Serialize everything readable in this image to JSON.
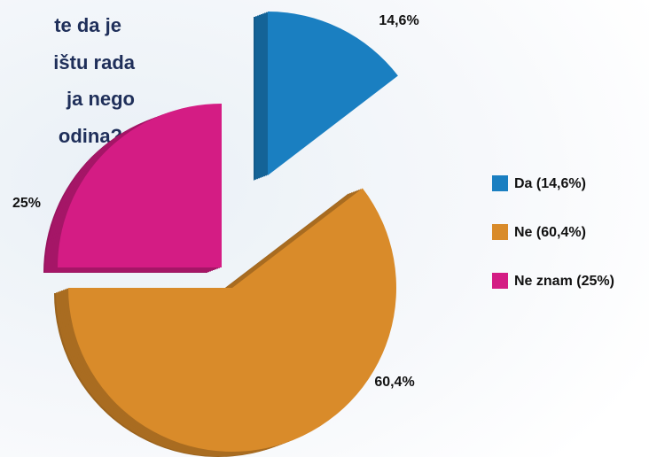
{
  "chart_data": {
    "type": "pie",
    "title": [
      "te da je",
      "ištu rada",
      "ja nego",
      "odina?"
    ],
    "categories": [
      "Da (14,6%)",
      "Ne (60,4%)",
      "Ne znam (25%)"
    ],
    "values": [
      14.6,
      60.4,
      25
    ],
    "value_labels": [
      "14,6%",
      "60,4%",
      "25%"
    ],
    "colors": [
      "#1a7fc1",
      "#d98b2a",
      "#d41c84"
    ],
    "legend": "right"
  }
}
